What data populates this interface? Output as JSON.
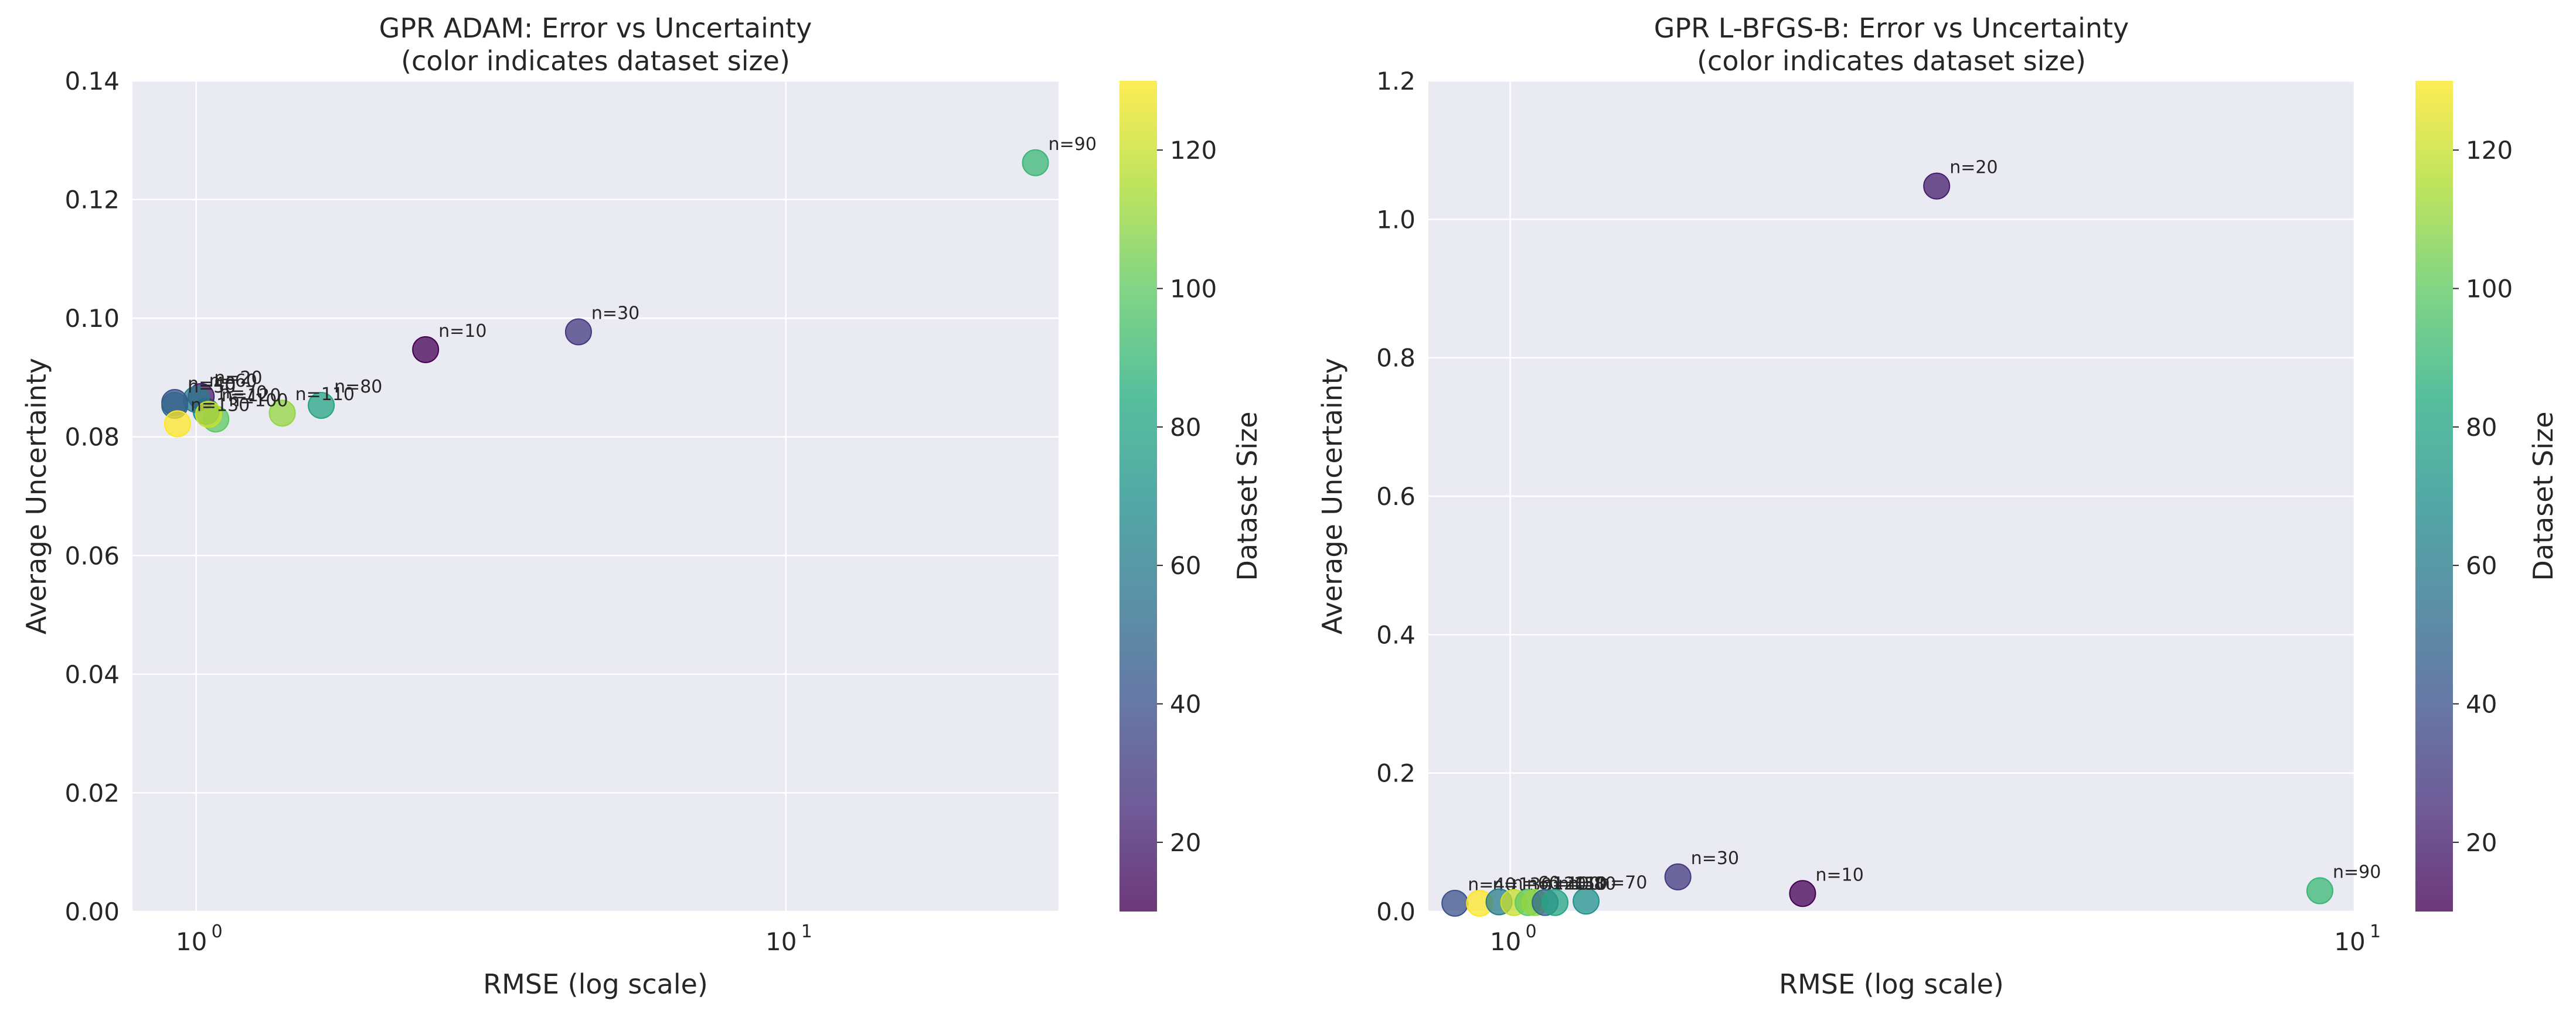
{
  "chart_data": [
    {
      "type": "scatter",
      "title": "GPR ADAM: Error vs Uncertainty\n(color indicates dataset size)",
      "xlabel": "RMSE (log scale)",
      "ylabel": "Average Uncertainty",
      "xscale": "log",
      "xlim": [
        0.78,
        29
      ],
      "ylim": [
        0,
        0.14
      ],
      "yticks": [
        0.0,
        0.02,
        0.04,
        0.06,
        0.08,
        0.1,
        0.12,
        0.14
      ],
      "ytick_labels": [
        "0.00",
        "0.02",
        "0.04",
        "0.06",
        "0.08",
        "0.10",
        "0.12",
        "0.14"
      ],
      "xticks": [
        1,
        10
      ],
      "xtick_base": "10",
      "xtick_exps": [
        "0",
        "1"
      ],
      "grid": true,
      "colorbar": {
        "label": "Dataset Size",
        "range": [
          10,
          130
        ],
        "ticks": [
          20,
          40,
          60,
          80,
          100,
          120
        ],
        "tick_labels": [
          "20",
          "40",
          "60",
          "80",
          "100",
          "120"
        ],
        "colormap": "viridis"
      },
      "points": [
        {
          "label": "n=90",
          "n": 90,
          "x": 26.5,
          "y": 0.1262
        },
        {
          "label": "n=30",
          "n": 30,
          "x": 4.45,
          "y": 0.0977
        },
        {
          "label": "n=10",
          "n": 10,
          "x": 2.45,
          "y": 0.0947
        },
        {
          "label": "n=80",
          "n": 80,
          "x": 1.63,
          "y": 0.0853
        },
        {
          "label": "n=110",
          "n": 110,
          "x": 1.4,
          "y": 0.084
        },
        {
          "label": "n=100",
          "n": 100,
          "x": 1.08,
          "y": 0.083
        },
        {
          "label": "n=70",
          "n": 70,
          "x": 1.04,
          "y": 0.0843
        },
        {
          "label": "n=20",
          "n": 20,
          "x": 1.02,
          "y": 0.0868
        },
        {
          "label": "n=60",
          "n": 60,
          "x": 1.0,
          "y": 0.0863
        },
        {
          "label": "n=40",
          "n": 40,
          "x": 0.92,
          "y": 0.0858
        },
        {
          "label": "n=50",
          "n": 50,
          "x": 0.92,
          "y": 0.0853
        },
        {
          "label": "n=120",
          "n": 120,
          "x": 1.05,
          "y": 0.0838
        },
        {
          "label": "n=130",
          "n": 130,
          "x": 0.93,
          "y": 0.0822
        }
      ]
    },
    {
      "type": "scatter",
      "title": "GPR L-BFGS-B: Error vs Uncertainty\n(color indicates dataset size)",
      "xlabel": "RMSE (log scale)",
      "ylabel": "Average Uncertainty",
      "xscale": "log",
      "xlim": [
        0.8,
        10
      ],
      "ylim": [
        0,
        1.2
      ],
      "yticks": [
        0.0,
        0.2,
        0.4,
        0.6,
        0.8,
        1.0,
        1.2
      ],
      "ytick_labels": [
        "0.0",
        "0.2",
        "0.4",
        "0.6",
        "0.8",
        "1.0",
        "1.2"
      ],
      "xticks": [
        1,
        10
      ],
      "xtick_base": "10",
      "xtick_exps": [
        "0",
        "1"
      ],
      "grid": true,
      "colorbar": {
        "label": "Dataset Size",
        "range": [
          10,
          130
        ],
        "ticks": [
          20,
          40,
          60,
          80,
          100,
          120
        ],
        "tick_labels": [
          "20",
          "40",
          "60",
          "80",
          "100",
          "120"
        ],
        "colormap": "viridis"
      },
      "points": [
        {
          "label": "n=20",
          "n": 20,
          "x": 3.2,
          "y": 1.048
        },
        {
          "label": "n=30",
          "n": 30,
          "x": 1.58,
          "y": 0.05
        },
        {
          "label": "n=10",
          "n": 10,
          "x": 2.22,
          "y": 0.026
        },
        {
          "label": "n=90",
          "n": 90,
          "x": 9.1,
          "y": 0.03
        },
        {
          "label": "n=70",
          "n": 70,
          "x": 1.23,
          "y": 0.015
        },
        {
          "label": "n=40",
          "n": 40,
          "x": 0.86,
          "y": 0.012
        },
        {
          "label": "n=130",
          "n": 130,
          "x": 0.92,
          "y": 0.012
        },
        {
          "label": "n=60",
          "n": 60,
          "x": 0.97,
          "y": 0.014
        },
        {
          "label": "n=120",
          "n": 120,
          "x": 1.01,
          "y": 0.013
        },
        {
          "label": "n=100",
          "n": 100,
          "x": 1.05,
          "y": 0.013
        },
        {
          "label": "n=110",
          "n": 110,
          "x": 1.07,
          "y": 0.013
        },
        {
          "label": "n=50",
          "n": 50,
          "x": 1.1,
          "y": 0.013
        },
        {
          "label": "n=80",
          "n": 80,
          "x": 1.13,
          "y": 0.013
        }
      ]
    }
  ]
}
